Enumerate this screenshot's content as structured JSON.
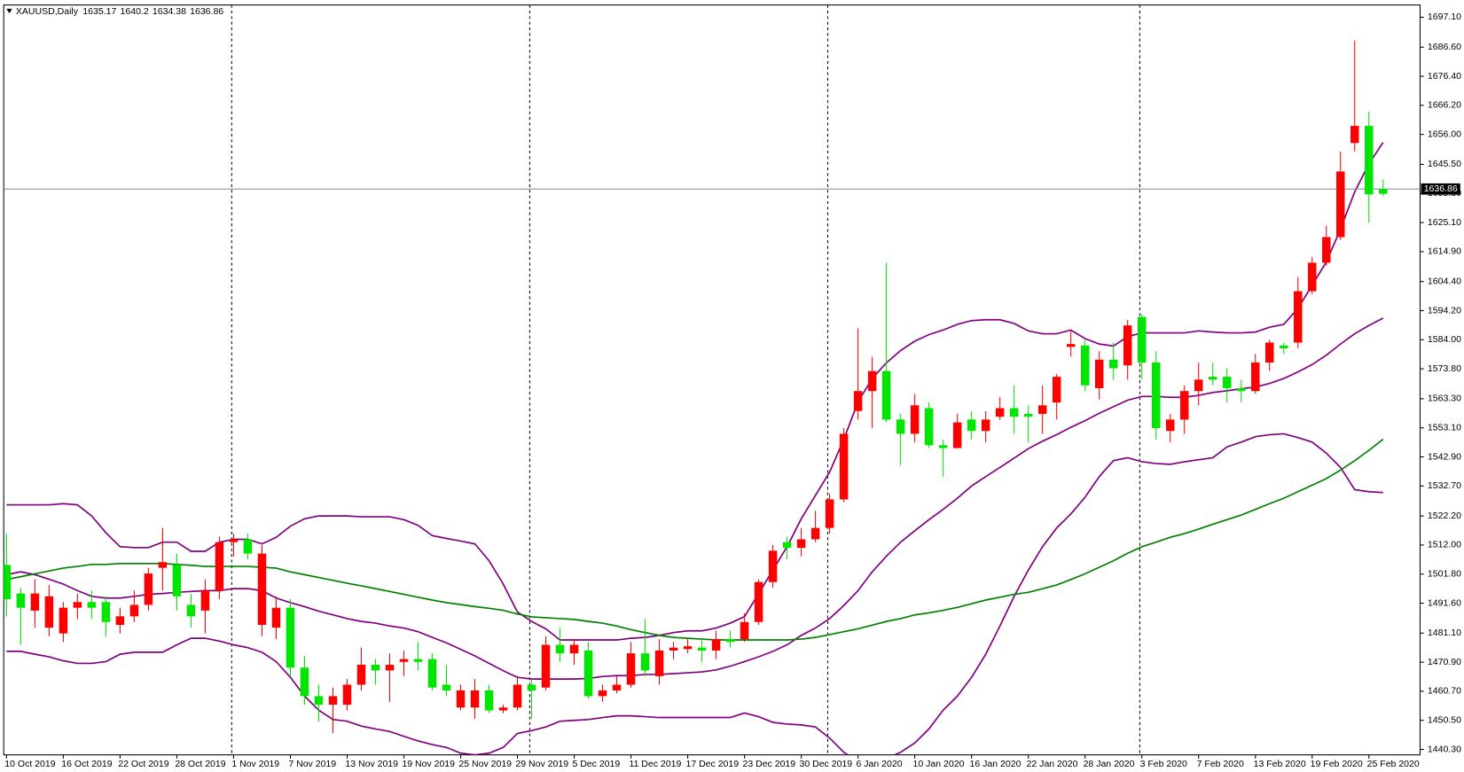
{
  "chart_data": {
    "type": "candlestick",
    "title": "XAUUSD,Daily",
    "categories": [
      "10 Oct 2019",
      null,
      null,
      null,
      "16 Oct 2019",
      null,
      null,
      null,
      "22 Oct 2019",
      null,
      null,
      null,
      "28 Oct 2019",
      null,
      null,
      null,
      "1 Nov 2019",
      null,
      null,
      null,
      "7 Nov 2019",
      null,
      null,
      null,
      "13 Nov 2019",
      null,
      null,
      null,
      "19 Nov 2019",
      null,
      null,
      null,
      "25 Nov 2019",
      null,
      null,
      null,
      "29 Nov 2019",
      null,
      null,
      null,
      "5 Dec 2019",
      null,
      null,
      null,
      "11 Dec 2019",
      null,
      null,
      null,
      "17 Dec 2019",
      null,
      null,
      null,
      "23 Dec 2019",
      null,
      null,
      null,
      "30 Dec 2019",
      null,
      null,
      null,
      "6 Jan 2020",
      null,
      null,
      null,
      "10 Jan 2020",
      null,
      null,
      null,
      "16 Jan 2020",
      null,
      null,
      null,
      "22 Jan 2020",
      null,
      null,
      null,
      "28 Jan 2020",
      null,
      null,
      null,
      "3 Feb 2020",
      null,
      null,
      null,
      "7 Feb 2020",
      null,
      null,
      null,
      "13 Feb 2020",
      null,
      null,
      null,
      "19 Feb 2020",
      null,
      null,
      null,
      "25 Feb 2020",
      null
    ],
    "open": [
      1493,
      1490,
      1495,
      1494,
      1490,
      1492,
      1490,
      1485,
      1487,
      1491,
      1502,
      1506,
      1494,
      1487,
      1496,
      1513,
      1514,
      1509,
      1509,
      1490,
      1469,
      1459,
      1456,
      1459,
      1463,
      1470,
      1468,
      1470,
      1472,
      1471,
      1462,
      1461,
      1461,
      1461,
      1454,
      1455,
      1463,
      1461,
      1477,
      1474,
      1477,
      1459,
      1461,
      1463,
      1474,
      1468,
      1475,
      1476,
      1476.5,
      1475,
      1479,
      1478,
      1485,
      1499,
      1510,
      1511,
      1514,
      1518,
      1528,
      1551,
      1566,
      1573,
      1556,
      1551,
      1561,
      1547,
      1546,
      1555,
      1552,
      1556,
      1560,
      1557,
      1557,
      1561,
      1571,
      1582.5,
      1568,
      1577,
      1574,
      1589,
      1576,
      1553,
      1556,
      1566,
      1570,
      1570,
      1567,
      1566,
      1576,
      1583,
      1581,
      1601,
      1611,
      1620,
      1643,
      1659,
      1635,
      1635.17
    ],
    "high": [
      1516,
      1497,
      1500,
      1498,
      1492,
      1495,
      1496,
      1494,
      1490,
      1496,
      1504,
      1518,
      1509,
      1495,
      1500,
      1515,
      1516,
      1516,
      1512,
      1494,
      1493,
      1473,
      1463,
      1462,
      1465,
      1476,
      1472,
      1474,
      1475,
      1478,
      1474,
      1470,
      1463,
      1465,
      1463,
      1456,
      1466,
      1465,
      1480,
      1483,
      1479,
      1478,
      1463,
      1466,
      1478,
      1486,
      1479,
      1478,
      1479,
      1479,
      1482,
      1482,
      1488,
      1500,
      1512,
      1515,
      1518,
      1524,
      1530,
      1553,
      1588,
      1578,
      1611,
      1558,
      1565,
      1562,
      1549,
      1558,
      1559,
      1559,
      1564,
      1568,
      1561,
      1568,
      1572,
      1587,
      1584,
      1580,
      1583,
      1591,
      1593,
      1580,
      1558,
      1568,
      1576,
      1576,
      1574,
      1570,
      1579,
      1584,
      1583,
      1606,
      1613,
      1624,
      1650,
      1689,
      1664,
      1640.2
    ],
    "low": [
      1487,
      1477,
      1483,
      1480,
      1478,
      1486,
      1486,
      1480,
      1481,
      1485,
      1489,
      1496,
      1489,
      1483,
      1481,
      1493,
      1508,
      1507,
      1480,
      1479,
      1466,
      1456,
      1450,
      1446,
      1454,
      1461,
      1463,
      1457,
      1466,
      1468,
      1461,
      1459,
      1454,
      1451,
      1453,
      1453,
      1454,
      1451,
      1461,
      1471,
      1470,
      1458,
      1457,
      1460,
      1462,
      1466,
      1463,
      1472,
      1474,
      1471,
      1472,
      1476,
      1478,
      1484,
      1497,
      1507,
      1508,
      1513,
      1516,
      1527,
      1556,
      1553,
      1555,
      1540,
      1548,
      1546,
      1536,
      1546,
      1549,
      1548,
      1556,
      1551,
      1548,
      1551,
      1556,
      1578,
      1566,
      1563,
      1570,
      1570,
      1570,
      1549,
      1548,
      1551,
      1561,
      1568,
      1562,
      1562,
      1565,
      1573,
      1579,
      1581,
      1600,
      1610,
      1619,
      1650,
      1625,
      1634.38
    ],
    "close": [
      1505,
      1495,
      1489,
      1483,
      1481,
      1490,
      1492,
      1492,
      1484,
      1487,
      1491,
      1504,
      1505,
      1491,
      1489,
      1496,
      1513,
      1514,
      1484,
      1483,
      1490,
      1469,
      1459,
      1456,
      1456,
      1463,
      1470,
      1468,
      1471,
      1472,
      1472,
      1463,
      1455,
      1455,
      1461,
      1454,
      1455,
      1463,
      1462,
      1477,
      1474,
      1475,
      1459,
      1461,
      1463,
      1474,
      1466,
      1475,
      1475.5,
      1476,
      1475,
      1479,
      1479,
      1485,
      1499,
      1513,
      1511,
      1514,
      1518,
      1528,
      1559,
      1566,
      1573,
      1556,
      1551,
      1560,
      1547,
      1546,
      1556,
      1552,
      1557,
      1560,
      1558,
      1558,
      1562,
      1581.5,
      1582,
      1567,
      1577,
      1575,
      1592,
      1576,
      1552,
      1556,
      1566,
      1571,
      1571,
      1567,
      1566,
      1576,
      1582,
      1583,
      1601,
      1611,
      1620,
      1653,
      1659,
      1636.86
    ],
    "up_color": "#00e600",
    "down_color": "#ff0000",
    "lines": [
      {
        "color": "#800080",
        "values": [
          1526.1,
          1526.1,
          1526.1,
          1526.1,
          1526.5,
          1526.1,
          1522.2,
          1516.3,
          1511.4,
          1511.1,
          1511.1,
          1513.0,
          1513.0,
          1509.8,
          1509.8,
          1513.0,
          1514.0,
          1514.0,
          1512.4,
          1514.7,
          1518.6,
          1521.2,
          1522.2,
          1522.2,
          1522.2,
          1521.9,
          1521.9,
          1521.9,
          1520.9,
          1518.9,
          1515.3,
          1514.3,
          1513.4,
          1512.4,
          1506.5,
          1498.3,
          1488.5,
          1485.2,
          1482.6,
          1478.7,
          1478.7,
          1478.7,
          1478.7,
          1478.7,
          1479.3,
          1479.6,
          1480.3,
          1481.3,
          1481.9,
          1481.9,
          1482.9,
          1484.6,
          1486.9,
          1495.0,
          1503.2,
          1511.4,
          1521.2,
          1529.4,
          1537.6,
          1549.1,
          1562.2,
          1570.4,
          1575.9,
          1580.2,
          1583.5,
          1585.8,
          1587.4,
          1589.4,
          1590.7,
          1591.0,
          1591.0,
          1589.7,
          1587.1,
          1586.1,
          1586.1,
          1587.4,
          1584.4,
          1582.5,
          1581.8,
          1585.1,
          1586.4,
          1586.4,
          1586.4,
          1586.4,
          1587.1,
          1586.7,
          1586.4,
          1586.4,
          1586.7,
          1588.4,
          1589.4,
          1595.0,
          1603.1,
          1611.3,
          1622.8,
          1635.9,
          1645.7,
          1653.2
        ]
      },
      {
        "color": "#800080",
        "values": [
          1501.6,
          1502.6,
          1501.6,
          1500.0,
          1498.3,
          1496.0,
          1494.0,
          1493.4,
          1493.4,
          1494.0,
          1494.7,
          1495.0,
          1495.4,
          1495.7,
          1496.0,
          1496.0,
          1496.7,
          1496.7,
          1496.0,
          1493.4,
          1491.8,
          1490.4,
          1488.8,
          1487.5,
          1486.2,
          1485.2,
          1484.6,
          1483.6,
          1482.9,
          1481.6,
          1479.6,
          1477.7,
          1475.4,
          1473.1,
          1470.5,
          1467.9,
          1465.6,
          1465.0,
          1465.0,
          1465.0,
          1465.0,
          1465.2,
          1465.9,
          1466.2,
          1466.2,
          1466.6,
          1466.6,
          1466.9,
          1467.2,
          1467.5,
          1468.2,
          1469.5,
          1471.1,
          1472.8,
          1474.7,
          1477.0,
          1480.3,
          1482.9,
          1486.2,
          1490.8,
          1496.0,
          1502.6,
          1508.1,
          1513.0,
          1517.0,
          1520.9,
          1524.5,
          1528.4,
          1532.7,
          1536.0,
          1539.2,
          1542.5,
          1545.8,
          1548.4,
          1550.7,
          1553.3,
          1555.6,
          1558.2,
          1560.5,
          1562.8,
          1564.1,
          1564.1,
          1563.8,
          1563.8,
          1564.5,
          1565.5,
          1566.1,
          1566.8,
          1567.4,
          1568.7,
          1570.4,
          1572.7,
          1575.3,
          1578.6,
          1582.5,
          1586.1,
          1589.0,
          1591.6
        ]
      },
      {
        "color": "#800080",
        "values": [
          1474.7,
          1474.7,
          1473.7,
          1472.8,
          1471.4,
          1470.5,
          1470.5,
          1471.1,
          1473.7,
          1474.4,
          1474.4,
          1474.4,
          1477.0,
          1479.3,
          1479.3,
          1478.3,
          1477.0,
          1476.0,
          1474.4,
          1471.1,
          1465.6,
          1459.0,
          1454.1,
          1450.8,
          1450.2,
          1448.5,
          1447.5,
          1446.6,
          1444.9,
          1443.3,
          1442.0,
          1441.0,
          1439.0,
          1438.4,
          1439.0,
          1441.0,
          1445.9,
          1446.9,
          1448.2,
          1450.2,
          1450.5,
          1450.8,
          1451.5,
          1452.1,
          1452.1,
          1451.8,
          1451.5,
          1451.5,
          1451.5,
          1451.5,
          1451.5,
          1451.5,
          1453.1,
          1451.8,
          1449.8,
          1449.2,
          1448.9,
          1448.2,
          1444.3,
          1439.3,
          1436.1,
          1436.1,
          1437.1,
          1439.3,
          1442.6,
          1447.5,
          1454.1,
          1459.0,
          1465.6,
          1473.7,
          1483.6,
          1494.0,
          1503.2,
          1511.4,
          1518.0,
          1522.9,
          1528.8,
          1536.0,
          1541.6,
          1542.6,
          1541.2,
          1540.6,
          1540.3,
          1541.2,
          1541.9,
          1542.6,
          1546.4,
          1548.1,
          1550.0,
          1550.7,
          1551.0,
          1549.7,
          1548.1,
          1544.2,
          1539.2,
          1531.4,
          1530.7,
          1530.4
        ]
      },
      {
        "color": "#008000",
        "values": [
          1499.9,
          1500.9,
          1501.9,
          1502.9,
          1503.9,
          1504.5,
          1505.2,
          1505.2,
          1505.5,
          1505.5,
          1505.5,
          1505.5,
          1505.2,
          1504.9,
          1504.5,
          1504.5,
          1504.5,
          1504.5,
          1504.2,
          1503.9,
          1502.6,
          1501.6,
          1500.6,
          1499.6,
          1498.6,
          1497.7,
          1496.7,
          1495.7,
          1494.7,
          1493.7,
          1492.7,
          1491.8,
          1491.1,
          1490.4,
          1489.8,
          1489.1,
          1487.8,
          1486.8,
          1486.5,
          1486.2,
          1485.9,
          1485.2,
          1484.6,
          1483.6,
          1482.3,
          1481.3,
          1480.3,
          1479.6,
          1479.3,
          1479.0,
          1478.7,
          1478.7,
          1478.7,
          1478.7,
          1478.7,
          1478.7,
          1479.0,
          1479.6,
          1480.6,
          1481.6,
          1482.6,
          1483.9,
          1485.2,
          1486.2,
          1487.5,
          1488.2,
          1489.1,
          1490.1,
          1491.4,
          1492.7,
          1493.7,
          1494.7,
          1495.4,
          1496.7,
          1498.0,
          1499.9,
          1501.9,
          1504.2,
          1506.5,
          1509.1,
          1511.4,
          1513.0,
          1514.7,
          1516.0,
          1517.6,
          1519.3,
          1520.9,
          1522.5,
          1524.5,
          1526.5,
          1528.4,
          1530.7,
          1533.0,
          1535.3,
          1538.3,
          1541.6,
          1545.2,
          1549.1
        ]
      }
    ],
    "ylim": [
      1438.4,
      1701.4
    ],
    "yticks": [
      {
        "value": 1697.1,
        "label": "1697.10"
      },
      {
        "value": 1686.6,
        "label": "1686.60"
      },
      {
        "value": 1676.4,
        "label": "1676.40"
      },
      {
        "value": 1666.2,
        "label": "1666.20"
      },
      {
        "value": 1656,
        "label": "1656.00"
      },
      {
        "value": 1645.5,
        "label": "1645.50"
      },
      {
        "value": 1635.3,
        "label": "1635.30"
      },
      {
        "value": 1625.1,
        "label": "1625.10"
      },
      {
        "value": 1614.9,
        "label": "1614.90"
      },
      {
        "value": 1604.4,
        "label": "1604.40"
      },
      {
        "value": 1594.2,
        "label": "1594.20"
      },
      {
        "value": 1584,
        "label": "1584.00"
      },
      {
        "value": 1573.8,
        "label": "1573.80"
      },
      {
        "value": 1563.3,
        "label": "1563.30"
      },
      {
        "value": 1553.1,
        "label": "1553.10"
      },
      {
        "value": 1542.9,
        "label": "1542.90"
      },
      {
        "value": 1532.7,
        "label": "1532.70"
      },
      {
        "value": 1522.2,
        "label": "1522.20"
      },
      {
        "value": 1512,
        "label": "1512.00"
      },
      {
        "value": 1501.8,
        "label": "1501.80"
      },
      {
        "value": 1491.6,
        "label": "1491.60"
      },
      {
        "value": 1481.1,
        "label": "1481.10"
      },
      {
        "value": 1470.9,
        "label": "1470.90"
      },
      {
        "value": 1460.7,
        "label": "1460.70"
      },
      {
        "value": 1450.5,
        "label": "1450.50"
      },
      {
        "value": 1440.3,
        "label": "1440.30"
      }
    ]
  }
}
